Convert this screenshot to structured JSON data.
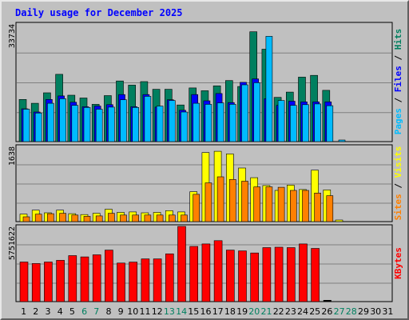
{
  "chart_data": {
    "type": "bar",
    "title": "Daily usage for December 2025",
    "categories": [
      "1",
      "2",
      "3",
      "4",
      "5",
      "6",
      "7",
      "8",
      "9",
      "10",
      "11",
      "12",
      "13",
      "14",
      "15",
      "16",
      "17",
      "18",
      "19",
      "20",
      "21",
      "22",
      "23",
      "24",
      "25",
      "26",
      "27",
      "28",
      "29",
      "30",
      "31"
    ],
    "weekend_days": [
      "6",
      "7",
      "13",
      "14",
      "20",
      "21",
      "27",
      "28"
    ],
    "panels": [
      {
        "name": "hits-files-pages",
        "ymax_label": "33734",
        "ymax": 33734,
        "legend": [
          {
            "text": "Pages",
            "color": "#00bbff"
          },
          {
            "text": " / ",
            "color": "#000000"
          },
          {
            "text": "Files",
            "color": "#0000ff"
          },
          {
            "text": " / ",
            "color": "#000000"
          },
          {
            "text": "Hits",
            "color": "#007f5f"
          }
        ],
        "series": [
          {
            "name": "Hits",
            "color": "#007f5f",
            "values": [
              12100,
              11000,
              14000,
              19300,
              13300,
              12500,
              10700,
              13200,
              17400,
              16200,
              17200,
              15000,
              15000,
              10500,
              15400,
              14600,
              16000,
              17500,
              15800,
              31500,
              26500,
              12700,
              14200,
              18500,
              19000,
              14700,
              0,
              0,
              0,
              0,
              0
            ]
          },
          {
            "name": "Files",
            "color": "#0000ff",
            "values": [
              9400,
              8500,
              12100,
              13100,
              11300,
              10000,
              10200,
              10600,
              13500,
              10000,
              13500,
              9900,
              12000,
              9000,
              13500,
              11700,
              13800,
              11200,
              17000,
              18000,
              12300,
              10400,
              11600,
              11400,
              11400,
              11400,
              0,
              0,
              0,
              0,
              0
            ]
          },
          {
            "name": "Pages",
            "color": "#00bbff",
            "values": [
              9300,
              8200,
              11000,
              12300,
              10400,
              9800,
              9300,
              9900,
              12000,
              9800,
              13000,
              10200,
              11800,
              8500,
              11000,
              10700,
              11100,
              10700,
              16300,
              16900,
              30200,
              11800,
              10400,
              10600,
              10800,
              10300,
              300,
              0,
              0,
              0,
              0
            ]
          }
        ]
      },
      {
        "name": "sites-visits",
        "ymax_label": "1638",
        "ymax": 1638,
        "legend": [
          {
            "text": "Sites",
            "color": "#ff8000"
          },
          {
            "text": " / ",
            "color": "#000000"
          },
          {
            "text": "Visits",
            "color": "#ffff00"
          }
        ],
        "series": [
          {
            "name": "Visits",
            "color": "#ffff00",
            "values": [
              170,
              260,
              200,
              260,
              180,
              160,
              190,
              280,
              210,
              220,
              200,
              210,
              250,
              220,
              680,
              1570,
              1600,
              1540,
              1220,
              1000,
              820,
              710,
              830,
              730,
              1170,
              720,
              20,
              0,
              0,
              0,
              0
            ]
          },
          {
            "name": "Sites",
            "color": "#ff8000",
            "values": [
              110,
              170,
              180,
              190,
              150,
              120,
              130,
              190,
              150,
              150,
              150,
              150,
              150,
              150,
              620,
              880,
              1020,
              960,
              920,
              790,
              790,
              780,
              710,
              710,
              650,
              590,
              0,
              0,
              0,
              0,
              0
            ]
          }
        ]
      },
      {
        "name": "kbytes",
        "ymax_label": "5751622",
        "ymax": 5751622,
        "legend": [
          {
            "text": "KBytes",
            "color": "#ff0000"
          }
        ],
        "series": [
          {
            "name": "KBytes",
            "color": "#ff0000",
            "values": [
              3030000,
              2910000,
              3030000,
              3160000,
              3520000,
              3420000,
              3580000,
              3940000,
              2950000,
              3020000,
              3270000,
              3270000,
              3650000,
              5750000,
              4220000,
              4410000,
              4660000,
              3940000,
              3880000,
              3720000,
              4130000,
              4160000,
              4130000,
              4410000,
              4070000,
              0,
              0,
              0,
              0,
              0,
              0
            ]
          }
        ]
      }
    ]
  }
}
